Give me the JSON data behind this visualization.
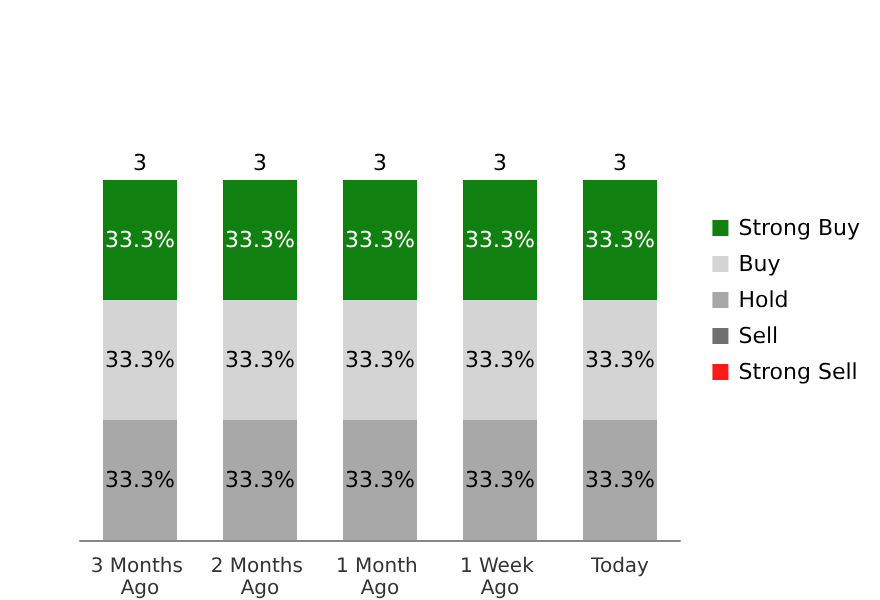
{
  "chart_data": {
    "type": "bar",
    "stacked": true,
    "legend": "right",
    "categories": [
      "3 Months Ago",
      "2 Months Ago",
      "1 Month Ago",
      "1 Week Ago",
      "Today"
    ],
    "series": [
      {
        "name": "Strong Sell",
        "color": "#ff1a1a",
        "values": [
          0,
          0,
          0,
          0,
          0
        ],
        "value_labels": [
          null,
          null,
          null,
          null,
          null
        ]
      },
      {
        "name": "Sell",
        "color": "#707070",
        "values": [
          0,
          0,
          0,
          0,
          0
        ],
        "value_labels": [
          null,
          null,
          null,
          null,
          null
        ]
      },
      {
        "name": "Hold",
        "color": "#a8a8a8",
        "values": [
          33.3,
          33.3,
          33.3,
          33.3,
          33.3
        ],
        "value_labels": [
          "33.3%",
          "33.3%",
          "33.3%",
          "33.3%",
          "33.3%"
        ]
      },
      {
        "name": "Buy",
        "color": "#d4d4d4",
        "values": [
          33.3,
          33.3,
          33.3,
          33.3,
          33.3
        ],
        "value_labels": [
          "33.3%",
          "33.3%",
          "33.3%",
          "33.3%",
          "33.3%"
        ]
      },
      {
        "name": "Strong Buy",
        "color": "#108010",
        "values": [
          33.3,
          33.3,
          33.3,
          33.3,
          33.3
        ],
        "value_labels": [
          "33.3%",
          "33.3%",
          "33.3%",
          "33.3%",
          "33.3%"
        ]
      }
    ],
    "annotations": [
      {
        "text": "3",
        "x": "3 Months Ago",
        "y": 99.9
      },
      {
        "text": "3",
        "x": "2 Months Ago",
        "y": 99.9
      },
      {
        "text": "3",
        "x": "1 Month Ago",
        "y": 99.9
      },
      {
        "text": "3",
        "x": "1 Week Ago",
        "y": 99.9
      },
      {
        "text": "3",
        "x": "Today",
        "y": 99.9
      }
    ]
  }
}
